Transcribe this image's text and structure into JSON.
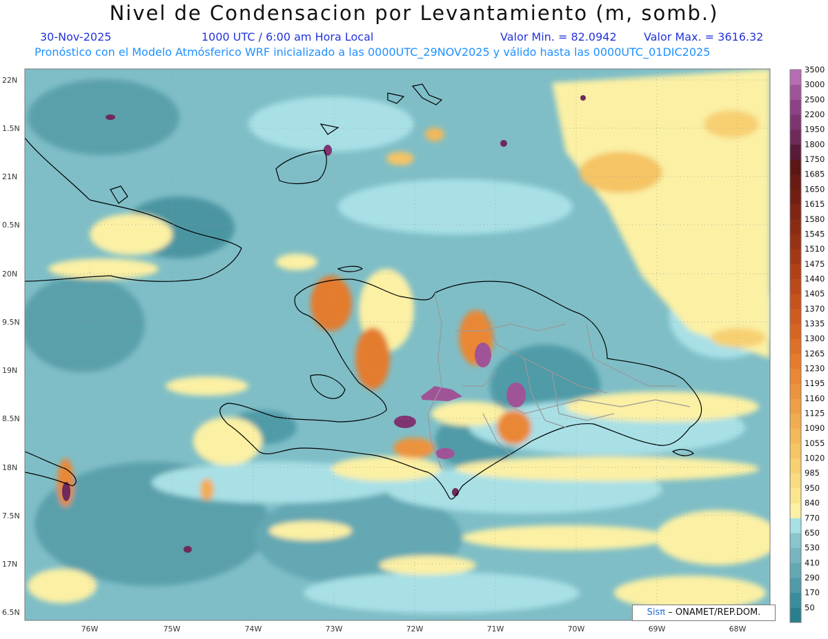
{
  "header": {
    "title": "Nivel de Condensacion por Levantamiento (m, somb.)",
    "date": "30-Nov-2025",
    "time": "1000 UTC / 6:00 am Hora Local",
    "min_value": "Valor Min. = 82.0942",
    "max_value": "Valor Max. = 3616.32",
    "forecast_note": "Pronóstico con el Modelo Atmósferico WRF inicializado a las 0000UTC_29NOV2025 y válido hasta las  0000UTC_01DIC2025"
  },
  "axes": {
    "lat_labels": [
      "22N",
      "1.5N",
      "21N",
      "0.5N",
      "20N",
      "9.5N",
      "19N",
      "8.5N",
      "18N",
      "7.5N",
      "17N",
      "6.5N"
    ],
    "lon_labels": [
      "76W",
      "75W",
      "74W",
      "73W",
      "72W",
      "71W",
      "70W",
      "69W",
      "68W"
    ]
  },
  "colorbar": {
    "levels": [
      "50",
      "170",
      "290",
      "410",
      "530",
      "650",
      "770",
      "840",
      "950",
      "985",
      "1020",
      "1055",
      "1090",
      "1125",
      "1160",
      "1195",
      "1230",
      "1265",
      "1300",
      "1335",
      "1370",
      "1405",
      "1440",
      "1475",
      "1510",
      "1545",
      "1580",
      "1615",
      "1650",
      "1685",
      "1750",
      "1800",
      "1950",
      "2200",
      "2500",
      "3000",
      "3500"
    ],
    "colors": [
      "#2a7f8f",
      "#3a8d9b",
      "#4f9ba8",
      "#64a8b3",
      "#77b6c0",
      "#8ac4cc",
      "#a8e0e6",
      "#fbf0a4",
      "#fbe68e",
      "#f9dc80",
      "#f7d072",
      "#f5c465",
      "#f3b85a",
      "#f1ac50",
      "#ef9f46",
      "#ed933d",
      "#ea8734",
      "#e47b2d",
      "#de7027",
      "#d76522",
      "#cf5b1f",
      "#c6521c",
      "#bc4919",
      "#b04117",
      "#a43916",
      "#983215",
      "#8c2b14",
      "#802513",
      "#741f13",
      "#681a13",
      "#5c1614",
      "#5a1a3a",
      "#6e2a5a",
      "#7e3470",
      "#8e4285",
      "#a05498",
      "#b86cb4"
    ]
  },
  "credit": {
    "logo": "Sisπ",
    "text": "– ONAMET/REP.DOM."
  }
}
